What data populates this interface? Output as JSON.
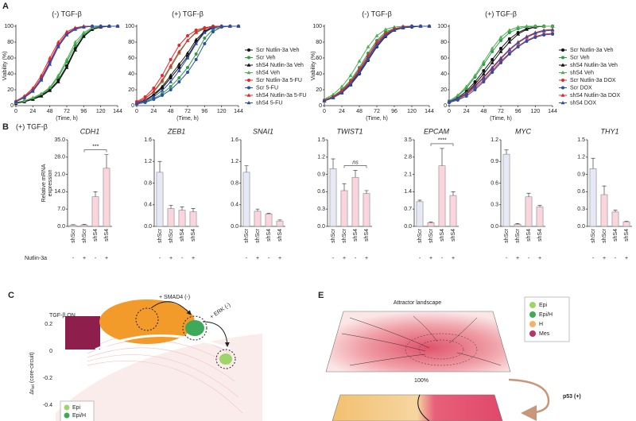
{
  "panel_labels": [
    "A",
    "B",
    "C",
    "E"
  ],
  "panel_b_condition": "(+) TGF-β",
  "treatment": {
    "label": "Nutlin-3a",
    "values": [
      "-",
      "+",
      "-",
      "+"
    ]
  },
  "chart_data": [
    {
      "type": "line",
      "title": "(-) TGF-β",
      "xlabel": "(Time, h)",
      "ylabel": "Viability (%)",
      "x": [
        0,
        12,
        24,
        36,
        48,
        60,
        72,
        84,
        96,
        108,
        120,
        132,
        144
      ],
      "xlim": [
        0,
        144
      ],
      "ylim": [
        0,
        100
      ],
      "xticks": [
        0,
        24,
        48,
        72,
        96,
        120,
        144
      ],
      "yticks": [
        0,
        20,
        40,
        60,
        80,
        100
      ],
      "legend": false,
      "series": [
        {
          "color": "#111111",
          "marker": "circle",
          "values": [
            3,
            5,
            8,
            13,
            20,
            32,
            50,
            72,
            88,
            96,
            99,
            100,
            100
          ]
        },
        {
          "color": "#2e9e44",
          "marker": "circle",
          "values": [
            4,
            6,
            9,
            14,
            22,
            36,
            55,
            76,
            90,
            97,
            99,
            100,
            100
          ]
        },
        {
          "color": "#111111",
          "marker": "triangle",
          "values": [
            3,
            5,
            8,
            12,
            19,
            30,
            48,
            70,
            87,
            96,
            99,
            100,
            100
          ]
        },
        {
          "color": "#4cb050",
          "marker": "triangle",
          "values": [
            4,
            6,
            10,
            15,
            23,
            38,
            58,
            80,
            92,
            98,
            100,
            100,
            100
          ]
        },
        {
          "color": "#e3262b",
          "marker": "circle",
          "values": [
            5,
            11,
            20,
            35,
            56,
            77,
            91,
            97,
            99,
            100,
            100,
            100,
            100
          ]
        },
        {
          "color": "#2b4fa8",
          "marker": "circle",
          "values": [
            5,
            10,
            19,
            33,
            54,
            75,
            90,
            97,
            99,
            100,
            100,
            100,
            100
          ]
        },
        {
          "color": "#e3262b",
          "marker": "triangle",
          "values": [
            6,
            12,
            22,
            38,
            60,
            80,
            93,
            98,
            100,
            100,
            100,
            100,
            100
          ]
        },
        {
          "color": "#2b4fa8",
          "marker": "triangle",
          "values": [
            5,
            10,
            18,
            32,
            52,
            74,
            89,
            96,
            99,
            100,
            100,
            100,
            100
          ]
        }
      ]
    },
    {
      "type": "line",
      "title": "(+) TGF-β",
      "xlabel": "(Time, h)",
      "x": [
        0,
        12,
        24,
        36,
        48,
        60,
        72,
        84,
        96,
        108,
        120,
        132,
        144
      ],
      "xlim": [
        0,
        144
      ],
      "ylim": [
        0,
        100
      ],
      "xticks": [
        0,
        24,
        48,
        72,
        96,
        120,
        144
      ],
      "yticks": [
        0,
        20,
        40,
        60,
        80,
        100
      ],
      "legend": "right",
      "series": [
        {
          "name": "Scr Nutlin-3a Veh",
          "color": "#111111",
          "marker": "circle",
          "values": [
            3,
            7,
            13,
            22,
            35,
            48,
            62,
            80,
            93,
            98,
            100,
            100,
            100
          ]
        },
        {
          "name": "Scr  Veh",
          "color": "#2e9e44",
          "marker": "circle",
          "values": [
            2,
            5,
            9,
            15,
            24,
            35,
            48,
            65,
            85,
            96,
            99,
            100,
            100
          ]
        },
        {
          "name": "shS4 Nutlin-3a Veh",
          "color": "#111111",
          "marker": "triangle",
          "values": [
            3,
            7,
            14,
            24,
            38,
            52,
            66,
            83,
            94,
            99,
            100,
            100,
            100
          ]
        },
        {
          "name": "shS4  Veh",
          "color": "#4cb050",
          "marker": "triangle",
          "values": [
            4,
            9,
            17,
            30,
            48,
            66,
            82,
            93,
            98,
            100,
            100,
            100,
            100
          ]
        },
        {
          "name": "Scr Nutlin-3a 5-FU",
          "color": "#e3262b",
          "marker": "circle",
          "values": [
            5,
            11,
            22,
            38,
            58,
            76,
            88,
            95,
            98,
            100,
            100,
            100,
            100
          ]
        },
        {
          "name": "Scr  5-FU",
          "color": "#2b4fa8",
          "marker": "circle",
          "values": [
            2,
            4,
            8,
            13,
            20,
            30,
            42,
            58,
            78,
            93,
            99,
            100,
            100
          ]
        },
        {
          "name": "shS4 Nutlin-3a 5-FU",
          "color": "#e3262b",
          "marker": "triangle",
          "values": [
            4,
            9,
            18,
            32,
            50,
            68,
            82,
            92,
            97,
            99,
            100,
            100,
            100
          ]
        },
        {
          "name": "shS4  5-FU",
          "color": "#2b4fa8",
          "marker": "triangle",
          "values": [
            3,
            6,
            11,
            19,
            30,
            44,
            60,
            78,
            92,
            98,
            100,
            100,
            100
          ]
        }
      ]
    },
    {
      "type": "line",
      "title": "(-) TGF-β",
      "xlabel": "(Time, h)",
      "ylabel": "Viability (%)",
      "x": [
        0,
        12,
        24,
        36,
        48,
        60,
        72,
        84,
        96,
        108,
        120,
        132,
        144
      ],
      "xlim": [
        0,
        144
      ],
      "ylim": [
        0,
        100
      ],
      "xticks": [
        0,
        24,
        48,
        72,
        96,
        120,
        144
      ],
      "yticks": [
        0,
        20,
        40,
        60,
        80,
        100
      ],
      "legend": false,
      "series": [
        {
          "color": "#111111",
          "marker": "circle",
          "values": [
            6,
            10,
            16,
            26,
            40,
            57,
            74,
            87,
            95,
            98,
            99,
            100,
            100
          ]
        },
        {
          "color": "#2e9e44",
          "marker": "circle",
          "values": [
            7,
            12,
            20,
            32,
            48,
            66,
            82,
            93,
            97,
            99,
            100,
            100,
            100
          ]
        },
        {
          "color": "#111111",
          "marker": "triangle",
          "values": [
            6,
            10,
            17,
            27,
            42,
            58,
            75,
            88,
            95,
            98,
            100,
            100,
            100
          ]
        },
        {
          "color": "#4cb050",
          "marker": "triangle",
          "values": [
            8,
            14,
            24,
            38,
            56,
            74,
            88,
            96,
            99,
            100,
            100,
            100,
            100
          ]
        },
        {
          "color": "#e3262b",
          "marker": "circle",
          "values": [
            6,
            11,
            18,
            29,
            44,
            61,
            78,
            90,
            96,
            99,
            100,
            100,
            100
          ]
        },
        {
          "color": "#2b4fa8",
          "marker": "circle",
          "values": [
            6,
            10,
            17,
            28,
            43,
            60,
            77,
            89,
            96,
            99,
            100,
            100,
            100
          ]
        },
        {
          "color": "#e3262b",
          "marker": "triangle",
          "values": [
            7,
            11,
            19,
            30,
            46,
            63,
            80,
            91,
            97,
            99,
            100,
            100,
            100
          ]
        },
        {
          "color": "#2b4fa8",
          "marker": "triangle",
          "values": [
            6,
            10,
            16,
            26,
            41,
            58,
            75,
            88,
            95,
            98,
            100,
            100,
            100
          ]
        }
      ]
    },
    {
      "type": "line",
      "title": "(+) TGF-β",
      "xlabel": "(Time, h)",
      "x": [
        0,
        12,
        24,
        36,
        48,
        60,
        72,
        84,
        96,
        108,
        120,
        132,
        144
      ],
      "xlim": [
        0,
        144
      ],
      "ylim": [
        0,
        100
      ],
      "xticks": [
        0,
        24,
        48,
        72,
        96,
        120,
        144
      ],
      "yticks": [
        0,
        20,
        40,
        60,
        80,
        100
      ],
      "legend": "right",
      "series": [
        {
          "name": "Scr Nutlin-3a Veh",
          "color": "#111111",
          "marker": "circle",
          "values": [
            5,
            10,
            18,
            30,
            44,
            58,
            72,
            84,
            92,
            97,
            99,
            100,
            100
          ]
        },
        {
          "name": "Scr  Veh",
          "color": "#2e9e44",
          "marker": "circle",
          "values": [
            6,
            12,
            22,
            36,
            52,
            68,
            82,
            92,
            97,
            99,
            100,
            100,
            100
          ]
        },
        {
          "name": "shS4 Nutlin-3a Veh",
          "color": "#111111",
          "marker": "triangle",
          "values": [
            5,
            9,
            16,
            27,
            40,
            54,
            68,
            80,
            90,
            96,
            99,
            100,
            100
          ]
        },
        {
          "name": "shS4  Veh",
          "color": "#4cb050",
          "marker": "triangle",
          "values": [
            6,
            13,
            24,
            38,
            55,
            72,
            86,
            95,
            99,
            100,
            100,
            100,
            100
          ]
        },
        {
          "name": "Scr Nutlin-3a DOX",
          "color": "#e3262b",
          "marker": "circle",
          "values": [
            4,
            8,
            14,
            22,
            32,
            44,
            56,
            66,
            75,
            82,
            87,
            90,
            91
          ]
        },
        {
          "name": "Scr  DOX",
          "color": "#2b4fa8",
          "marker": "circle",
          "values": [
            4,
            7,
            12,
            20,
            30,
            42,
            54,
            65,
            74,
            81,
            86,
            89,
            90
          ]
        },
        {
          "name": "shS4 Nutlin-3a DOX",
          "color": "#e3262b",
          "marker": "triangle",
          "values": [
            5,
            9,
            16,
            25,
            36,
            48,
            60,
            71,
            80,
            87,
            92,
            95,
            96
          ]
        },
        {
          "name": "shS4  DOX",
          "color": "#2b4fa8",
          "marker": "triangle",
          "values": [
            5,
            9,
            15,
            24,
            35,
            47,
            59,
            70,
            79,
            86,
            91,
            94,
            95
          ]
        }
      ]
    },
    {
      "type": "bar",
      "title": "CDH1",
      "ylabel": [
        "Relative mRNA",
        "expression"
      ],
      "categories": [
        "shScr",
        "shScr",
        "shS4",
        "shS4"
      ],
      "values": [
        0.5,
        0.6,
        12,
        23.5
      ],
      "errors": [
        0.2,
        0.2,
        2,
        5.5
      ],
      "colors": [
        "#e6e8f6",
        "#fbd5de",
        "#fbd5de",
        "#fbd5de"
      ],
      "ylim": [
        0,
        35
      ],
      "yticks": [
        {
          "value": 0,
          "label": "0.0"
        },
        {
          "value": 7,
          "label": "7.0"
        },
        {
          "value": 14,
          "label": "14.0"
        },
        {
          "value": 21,
          "label": "21.0"
        },
        {
          "value": 28,
          "label": "28.0"
        },
        {
          "value": 35,
          "label": "35.0"
        }
      ],
      "significance": [
        {
          "from": 1,
          "to": 3,
          "label": "***"
        }
      ]
    },
    {
      "type": "bar",
      "title": "ZEB1",
      "categories": [
        "shScr",
        "shScr",
        "shS4",
        "shS4"
      ],
      "values": [
        1.0,
        0.33,
        0.3,
        0.27
      ],
      "errors": [
        0.2,
        0.06,
        0.06,
        0.06
      ],
      "colors": [
        "#e6e8f6",
        "#fbd5de",
        "#fbd5de",
        "#fbd5de"
      ],
      "ylim": [
        0,
        1.6
      ],
      "yticks": [
        {
          "value": 0,
          "label": "0.0"
        },
        0.4,
        0.8,
        1.2,
        1.6
      ]
    },
    {
      "type": "bar",
      "title": "SNAI1",
      "categories": [
        "shScr",
        "shScr",
        "shS4",
        "shS4"
      ],
      "values": [
        1.0,
        0.28,
        0.23,
        0.1
      ],
      "errors": [
        0.12,
        0.04,
        0.01,
        0.02
      ],
      "colors": [
        "#e6e8f6",
        "#fbd5de",
        "#fbd5de",
        "#fbd5de"
      ],
      "ylim": [
        0,
        1.6
      ],
      "yticks": [
        {
          "value": 0,
          "label": "0.0"
        },
        0.4,
        0.8,
        1.2,
        1.6
      ]
    },
    {
      "type": "bar",
      "title": "TWIST1",
      "categories": [
        "shScr",
        "shScr",
        "shS4",
        "shS4"
      ],
      "values": [
        1.0,
        0.62,
        0.85,
        0.57
      ],
      "errors": [
        0.17,
        0.12,
        0.12,
        0.05
      ],
      "colors": [
        "#e6e8f6",
        "#fbd5de",
        "#fbd5de",
        "#fbd5de"
      ],
      "ylim": [
        0,
        1.5
      ],
      "yticks": [
        {
          "value": 0,
          "label": "0.0"
        },
        0.3,
        0.6,
        0.9,
        1.2,
        1.5
      ],
      "significance": [
        {
          "from": 1,
          "to": 3,
          "label": "ns"
        }
      ]
    },
    {
      "type": "bar",
      "title": "EPCAM",
      "categories": [
        "shScr",
        "shScr",
        "shS4",
        "shS4"
      ],
      "values": [
        1.0,
        0.15,
        2.45,
        1.25
      ],
      "errors": [
        0.06,
        0.03,
        0.7,
        0.15
      ],
      "colors": [
        "#e6e8f6",
        "#fbd5de",
        "#fbd5de",
        "#fbd5de"
      ],
      "ylim": [
        0,
        3.5
      ],
      "yticks": [
        {
          "value": 0,
          "label": "0.0"
        },
        0.7,
        1.4,
        2.1,
        2.8,
        3.5
      ],
      "significance": [
        {
          "from": 1,
          "to": 3,
          "label": "****"
        }
      ]
    },
    {
      "type": "bar",
      "title": "MYC",
      "categories": [
        "shScr",
        "shScr",
        "shS4",
        "shS4"
      ],
      "values": [
        1.0,
        0.03,
        0.41,
        0.27
      ],
      "errors": [
        0.06,
        0.01,
        0.05,
        0.02
      ],
      "colors": [
        "#e6e8f6",
        "#fbd5de",
        "#fbd5de",
        "#fbd5de"
      ],
      "ylim": [
        0,
        1.2
      ],
      "yticks": [
        {
          "value": 0,
          "label": "0.0"
        },
        0.3,
        0.6,
        0.9,
        1.2
      ]
    },
    {
      "type": "bar",
      "title": "THY1",
      "categories": [
        "shScr",
        "shScr",
        "shS4",
        "shS4"
      ],
      "values": [
        1.0,
        0.55,
        0.25,
        0.08
      ],
      "errors": [
        0.18,
        0.15,
        0.03,
        0.01
      ],
      "colors": [
        "#e6e8f6",
        "#fbd5de",
        "#fbd5de",
        "#fbd5de"
      ],
      "ylim": [
        0,
        1.5
      ],
      "yticks": [
        {
          "value": 0,
          "label": "0.0"
        },
        0.3,
        0.6,
        0.9,
        1.2,
        1.5
      ]
    }
  ],
  "panel_c": {
    "condition": "TGF-β ON",
    "annotations": [
      "+ SMAD4 (-)",
      "+ ERK (-)"
    ],
    "ylabel_main": "Δr",
    "ylabel_sub": "tot",
    "ylabel_rest": "(core-circuit)",
    "yticks": [
      0.2,
      0,
      -0.2,
      -0.4
    ],
    "legend": [
      "Epi",
      "Epi/H"
    ]
  },
  "panel_e": {
    "title": "Attractor landscape",
    "percent": "100%",
    "perturbation": "p53 (+)",
    "legend": [
      "Epi",
      "Epi/H",
      "H",
      "Mes"
    ]
  }
}
